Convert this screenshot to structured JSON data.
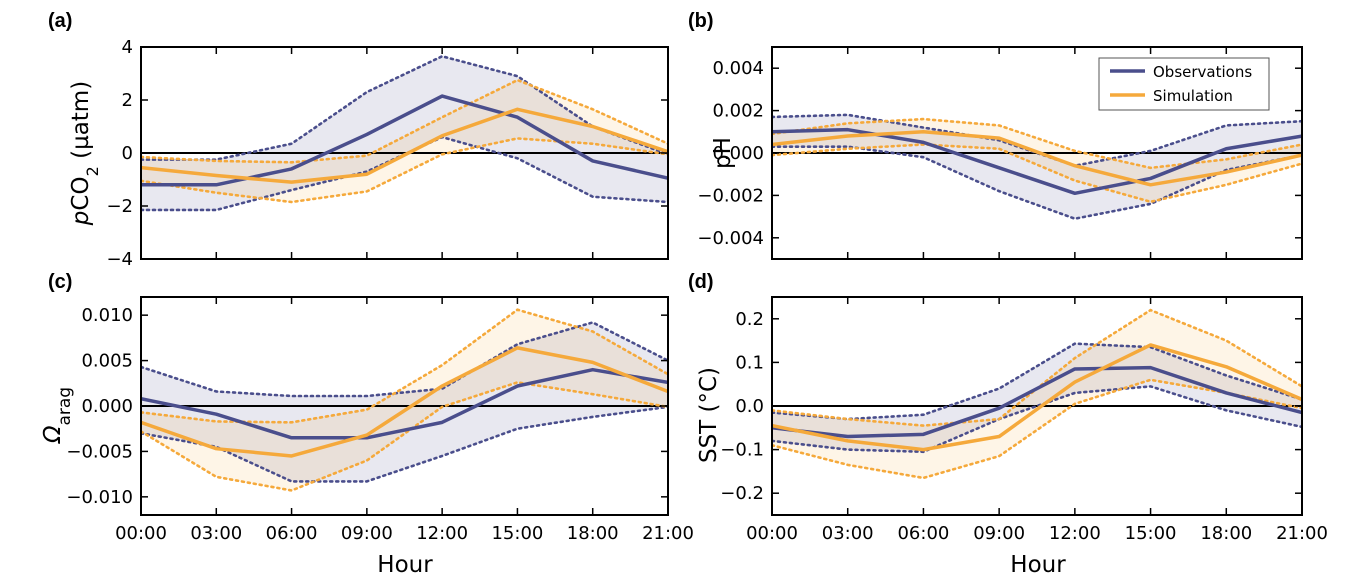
{
  "colors": {
    "observations": "#4a4e8c",
    "simulation": "#f5a93b"
  },
  "legend": {
    "position": "top-right",
    "entries": [
      "Observations",
      "Simulation"
    ]
  },
  "chart_data": [
    {
      "type": "line",
      "panel_label": "(a)",
      "ylabel": "pCO2 (µatm)",
      "ylabel_parts": {
        "italic": "p",
        "base": "CO",
        "sub": "2",
        "rest": " (µatm)"
      },
      "xlabel": "",
      "x": [
        "00:00",
        "03:00",
        "06:00",
        "09:00",
        "12:00",
        "15:00",
        "18:00",
        "21:00"
      ],
      "ylim": [
        -4,
        4
      ],
      "yticks": [
        -4,
        -2,
        0,
        2,
        4
      ],
      "ytick_labels": [
        "−4",
        "−2",
        "0",
        "2",
        "4"
      ],
      "show_xtick_labels": false,
      "series": [
        {
          "name": "Observations",
          "values": [
            -1.2,
            -1.2,
            -0.6,
            0.7,
            2.15,
            1.35,
            -0.3,
            -0.95
          ],
          "lower": [
            -2.15,
            -2.15,
            -1.4,
            -0.7,
            0.6,
            -0.2,
            -1.65,
            -1.85
          ],
          "upper": [
            -0.25,
            -0.25,
            0.35,
            2.3,
            3.65,
            2.9,
            1.0,
            -0.05
          ]
        },
        {
          "name": "Simulation",
          "values": [
            -0.55,
            -0.85,
            -1.1,
            -0.8,
            0.65,
            1.65,
            1.0,
            0.05
          ],
          "lower": [
            -1.05,
            -1.5,
            -1.85,
            -1.45,
            -0.05,
            0.55,
            0.35,
            -0.05
          ],
          "upper": [
            -0.15,
            -0.3,
            -0.35,
            -0.1,
            1.35,
            2.75,
            1.65,
            0.35
          ]
        }
      ]
    },
    {
      "type": "line",
      "panel_label": "(b)",
      "ylabel": "pH",
      "xlabel": "",
      "x": [
        "00:00",
        "03:00",
        "06:00",
        "09:00",
        "12:00",
        "15:00",
        "18:00",
        "21:00"
      ],
      "ylim": [
        -0.005,
        0.005
      ],
      "yticks": [
        -0.004,
        -0.002,
        0,
        0.002,
        0.004
      ],
      "ytick_labels": [
        "−0.004",
        "−0.002",
        "0.000",
        "0.002",
        "0.004"
      ],
      "show_xtick_labels": false,
      "series": [
        {
          "name": "Observations",
          "values": [
            0.001,
            0.0011,
            0.0005,
            -0.0007,
            -0.0019,
            -0.0012,
            0.0002,
            0.0008
          ],
          "lower": [
            0.0003,
            0.0003,
            -0.0002,
            -0.0018,
            -0.0031,
            -0.0024,
            -0.0008,
            -0.0001
          ],
          "upper": [
            0.0017,
            0.0018,
            0.0012,
            0.0006,
            -0.0006,
            0.0001,
            0.0013,
            0.0015
          ]
        },
        {
          "name": "Simulation",
          "values": [
            0.0004,
            0.0008,
            0.001,
            0.0007,
            -0.0006,
            -0.0015,
            -0.0009,
            -0.0001
          ],
          "lower": [
            -0.0001,
            0.0002,
            0.0004,
            0.0002,
            -0.0013,
            -0.0023,
            -0.0015,
            -0.0005
          ],
          "upper": [
            0.0009,
            0.0014,
            0.0016,
            0.0013,
            0.0001,
            -0.0007,
            -0.0003,
            0.0004
          ]
        }
      ]
    },
    {
      "type": "line",
      "panel_label": "(c)",
      "ylabel": "Ωarag",
      "ylabel_parts": {
        "symbol": "Ω",
        "sub": "arag"
      },
      "xlabel": "Hour",
      "x": [
        "00:00",
        "03:00",
        "06:00",
        "09:00",
        "12:00",
        "15:00",
        "18:00",
        "21:00"
      ],
      "ylim": [
        -0.012,
        0.012
      ],
      "yticks": [
        -0.01,
        -0.005,
        0,
        0.005,
        0.01
      ],
      "ytick_labels": [
        "−0.010",
        "−0.005",
        "0.000",
        "0.005",
        "0.010"
      ],
      "show_xtick_labels": true,
      "series": [
        {
          "name": "Observations",
          "values": [
            0.0008,
            -0.0009,
            -0.0035,
            -0.0035,
            -0.0018,
            0.0022,
            0.004,
            0.0026
          ],
          "lower": [
            -0.003,
            -0.0045,
            -0.0083,
            -0.0083,
            -0.0055,
            -0.0025,
            -0.0012,
            -0.0001
          ],
          "upper": [
            0.0043,
            0.0016,
            0.0011,
            0.0011,
            0.0019,
            0.0068,
            0.0092,
            0.005
          ]
        },
        {
          "name": "Simulation",
          "values": [
            -0.0018,
            -0.0047,
            -0.0055,
            -0.0032,
            0.0022,
            0.0064,
            0.0048,
            0.0016
          ],
          "lower": [
            -0.0028,
            -0.0078,
            -0.0093,
            -0.006,
            -0.0001,
            0.0026,
            0.0013,
            -0.0001
          ],
          "upper": [
            -0.0007,
            -0.0017,
            -0.0018,
            -0.0004,
            0.0045,
            0.0106,
            0.0082,
            0.0035
          ]
        }
      ]
    },
    {
      "type": "line",
      "panel_label": "(d)",
      "ylabel": "SST (°C)",
      "xlabel": "Hour",
      "x": [
        "00:00",
        "03:00",
        "06:00",
        "09:00",
        "12:00",
        "15:00",
        "18:00",
        "21:00"
      ],
      "ylim": [
        -0.25,
        0.25
      ],
      "yticks": [
        -0.2,
        -0.1,
        0,
        0.1,
        0.2
      ],
      "ytick_labels": [
        "−0.2",
        "−0.1",
        "0.0",
        "0.1",
        "0.2"
      ],
      "show_xtick_labels": true,
      "series": [
        {
          "name": "Observations",
          "values": [
            -0.05,
            -0.07,
            -0.065,
            -0.005,
            0.085,
            0.088,
            0.03,
            -0.015
          ],
          "lower": [
            -0.08,
            -0.1,
            -0.105,
            -0.03,
            0.03,
            0.045,
            -0.01,
            -0.048
          ],
          "upper": [
            -0.015,
            -0.03,
            -0.02,
            0.04,
            0.143,
            0.135,
            0.07,
            0.015
          ]
        },
        {
          "name": "Simulation",
          "values": [
            -0.045,
            -0.08,
            -0.1,
            -0.07,
            0.055,
            0.14,
            0.09,
            0.015
          ],
          "lower": [
            -0.09,
            -0.135,
            -0.165,
            -0.115,
            0.005,
            0.06,
            0.03,
            -0.005
          ],
          "upper": [
            -0.01,
            -0.03,
            -0.045,
            -0.03,
            0.11,
            0.22,
            0.15,
            0.045
          ]
        }
      ]
    }
  ]
}
